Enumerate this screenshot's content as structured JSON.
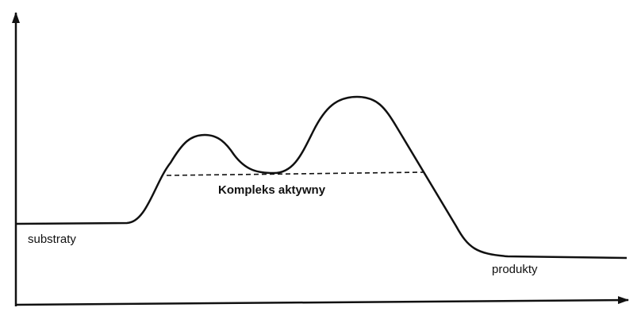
{
  "labels": {
    "reactants": "substraty",
    "activated_complex": "Kompleks aktywny",
    "products": "produkty"
  }
}
